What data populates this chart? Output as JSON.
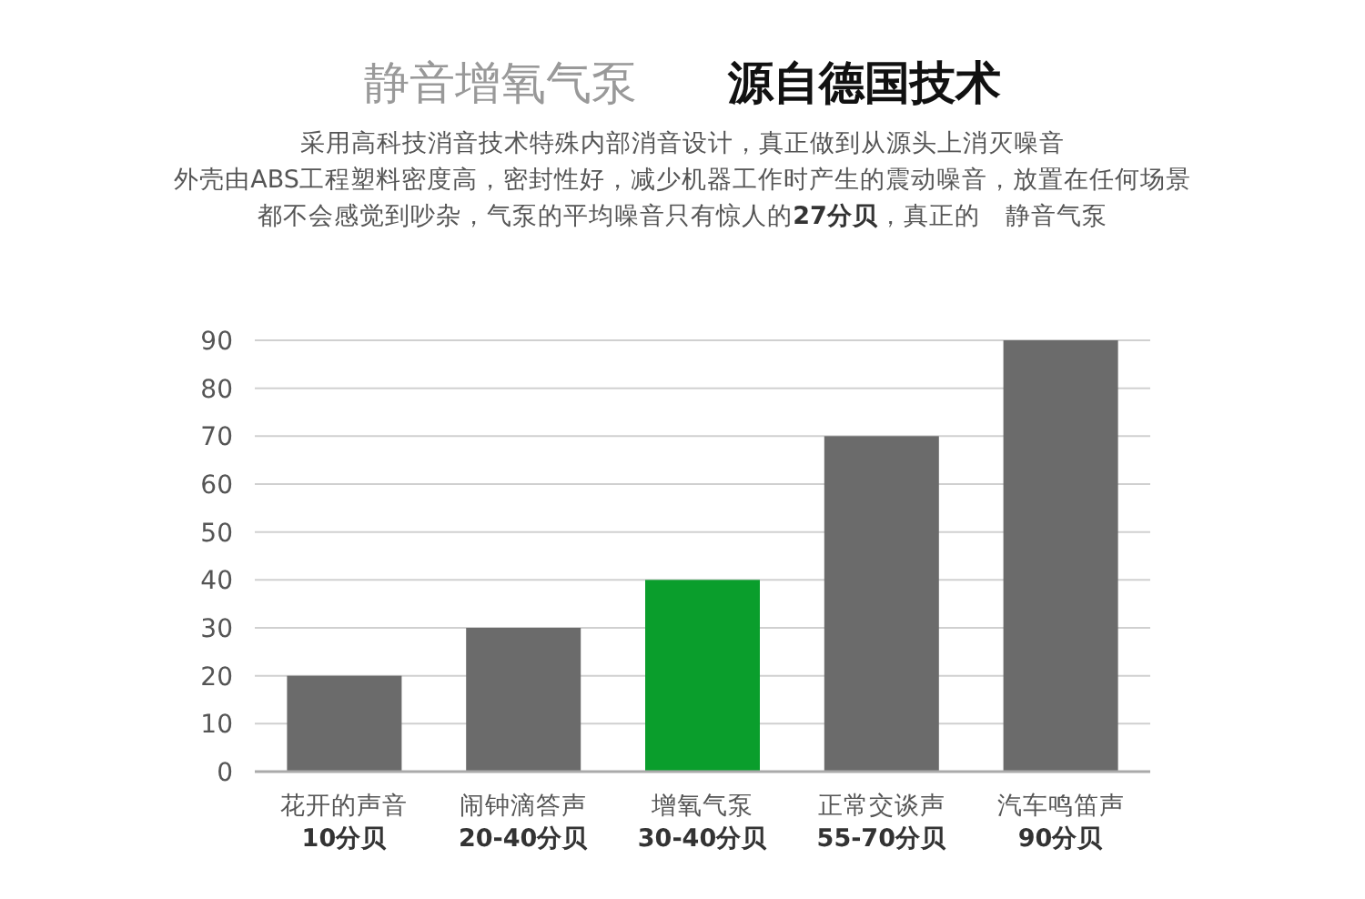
{
  "chart_data": {
    "type": "bar",
    "title": "静音增氧气泵　　**源自德国技术**",
    "annotations": [
      "采用高科技消音技术特殊内部消音设计，真正做到从源头上消灭噪音",
      "外壳由ABS工程塑料密度高，密封性好，减少机器工作时产生的震动噪音，放置在任何场景",
      "都不会感觉到吵杂，气泵的平均噪音只有惊人的**27分贝**，真正的　静音气泵"
    ],
    "categories": [
      "花开的声音\n**10分贝**",
      "闹钟滴答声\n**20-40分贝**",
      "增氧气泵\n**30-40分贝**",
      "正常交谈声\n**55-70分贝**",
      "汽车鸣笛声\n**90分贝**"
    ],
    "values": [
      20,
      30,
      40,
      70,
      90
    ],
    "colors": [
      "#6b6b6b",
      "#6b6b6b",
      "#0a9e2c",
      "#6b6b6b",
      "#6b6b6b"
    ],
    "ylim": [
      0,
      90
    ],
    "yticks": [
      0,
      10,
      20,
      30,
      40,
      50,
      60,
      70,
      80,
      90
    ],
    "grid": "y"
  }
}
